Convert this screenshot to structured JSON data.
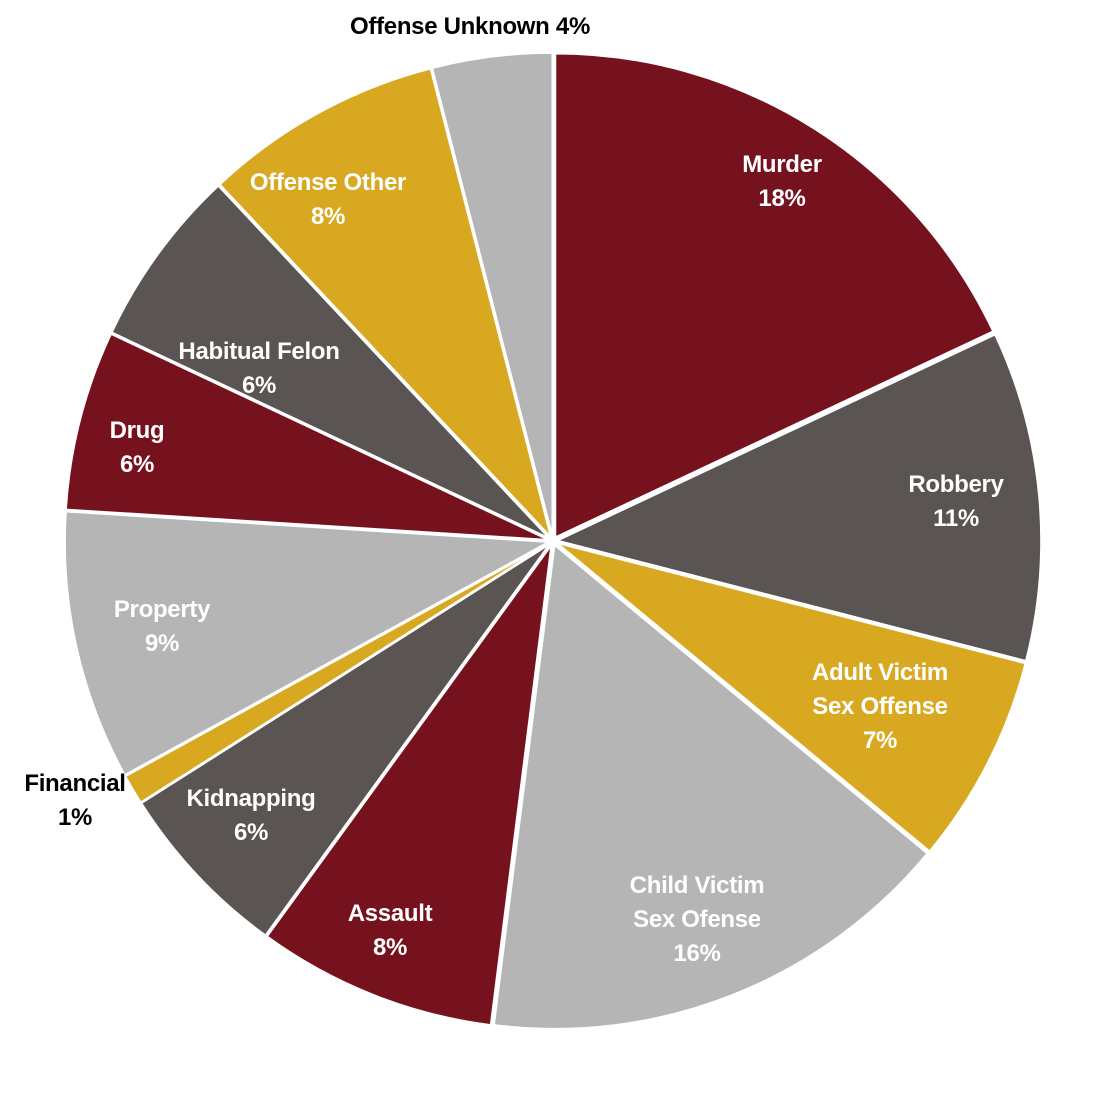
{
  "chart_data": {
    "type": "pie",
    "title": "",
    "start": "12 o'clock",
    "direction": "clockwise",
    "slices": [
      {
        "name": "Murder",
        "label_lines": [
          "Murder",
          "18%"
        ],
        "value": 18,
        "color": "#76121D",
        "label_color": "#FFFFFF",
        "label_placement": "inside"
      },
      {
        "name": "Robbery",
        "label_lines": [
          "Robbery",
          "11%"
        ],
        "value": 11,
        "color": "#5A5452",
        "label_color": "#FFFFFF",
        "label_placement": "inside"
      },
      {
        "name": "Adult Victim Sex Offense",
        "label_lines": [
          "Adult Victim",
          "Sex Offense",
          "7%"
        ],
        "value": 7,
        "color": "#D9A821",
        "label_color": "#FFFFFF",
        "label_placement": "inside"
      },
      {
        "name": "Child Victim Sex Ofense",
        "label_lines": [
          "Child Victim",
          "Sex Ofense",
          "16%"
        ],
        "value": 16,
        "color": "#B5B5B5",
        "label_color": "#FFFFFF",
        "label_placement": "inside"
      },
      {
        "name": "Assault",
        "label_lines": [
          "Assault",
          "8%"
        ],
        "value": 8,
        "color": "#76121D",
        "label_color": "#FFFFFF",
        "label_placement": "inside"
      },
      {
        "name": "Kidnapping",
        "label_lines": [
          "Kidnapping",
          "6%"
        ],
        "value": 6,
        "color": "#5A5452",
        "label_color": "#FFFFFF",
        "label_placement": "inside"
      },
      {
        "name": "Financial",
        "label_lines": [
          "Financial",
          "1%"
        ],
        "value": 1,
        "color": "#D9A821",
        "label_color": "#000000",
        "label_placement": "outside-left"
      },
      {
        "name": "Property",
        "label_lines": [
          "Property",
          "9%"
        ],
        "value": 9,
        "color": "#B5B5B5",
        "label_color": "#FFFFFF",
        "label_placement": "inside"
      },
      {
        "name": "Drug",
        "label_lines": [
          "Drug",
          "6%"
        ],
        "value": 6,
        "color": "#76121D",
        "label_color": "#FFFFFF",
        "label_placement": "inside"
      },
      {
        "name": "Habitual Felon",
        "label_lines": [
          "Habitual Felon",
          "6%"
        ],
        "value": 6,
        "color": "#5A5452",
        "label_color": "#FFFFFF",
        "label_placement": "inside"
      },
      {
        "name": "Offense Other",
        "label_lines": [
          "Offense Other",
          "8%"
        ],
        "value": 8,
        "color": "#D9A821",
        "label_color": "#FFFFFF",
        "label_placement": "inside"
      },
      {
        "name": "Offense Unknown",
        "label_lines": [
          "Offense Unknown 4%"
        ],
        "value": 4,
        "color": "#B5B5B5",
        "label_color": "#000000",
        "label_placement": "outside-top"
      }
    ]
  }
}
